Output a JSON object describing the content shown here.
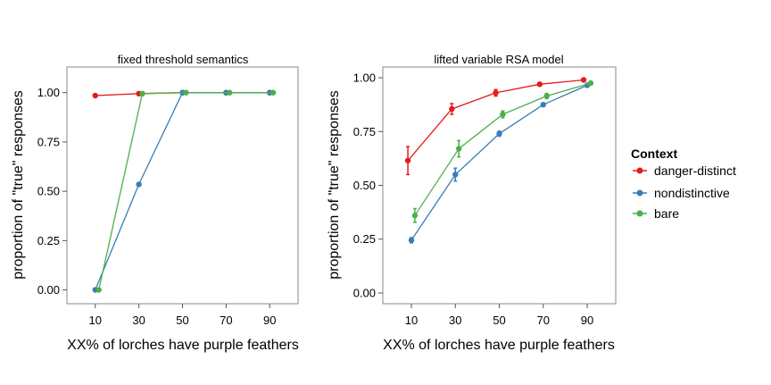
{
  "colors": {
    "danger-distinct": "#e41a1c",
    "nondistinctive": "#377eb8",
    "bare": "#4daf4a"
  },
  "legend": {
    "title": "Context",
    "items": [
      {
        "key": "danger-distinct",
        "label": "danger-distinct"
      },
      {
        "key": "nondistinctive",
        "label": "nondistinctive"
      },
      {
        "key": "bare",
        "label": "bare"
      }
    ]
  },
  "chart_data": [
    {
      "type": "line",
      "title": "fixed threshold semantics",
      "xlabel": "XX% of lorches have purple feathers",
      "ylabel": "proportion of \"true\" responses",
      "x_ticks": [
        10,
        30,
        50,
        70,
        90
      ],
      "y_ticks": [
        0.0,
        0.25,
        0.5,
        0.75,
        1.0
      ],
      "y_tick_labels": [
        "0.00",
        "0.25",
        "0.50",
        "0.75",
        "1.00"
      ],
      "xlim": [
        -3,
        103
      ],
      "ylim": [
        -0.07,
        1.13
      ],
      "series": [
        {
          "key": "danger-distinct",
          "name": "danger-distinct",
          "x": [
            10,
            30,
            50,
            70,
            90
          ],
          "y": [
            0.985,
            0.995,
            1.0,
            1.0,
            1.0
          ]
        },
        {
          "key": "nondistinctive",
          "name": "nondistinctive",
          "x": [
            10,
            30,
            50,
            70,
            90
          ],
          "y": [
            0.0,
            0.535,
            1.0,
            1.0,
            1.0
          ]
        },
        {
          "key": "bare",
          "name": "bare",
          "x": [
            10,
            30,
            50,
            70,
            90
          ],
          "y": [
            0.0,
            0.995,
            1.0,
            1.0,
            1.0
          ]
        }
      ]
    },
    {
      "type": "line",
      "title": "lifted variable RSA model",
      "xlabel": "XX% of lorches have purple feathers",
      "ylabel": "proportion of \"true\" responses",
      "x_ticks": [
        10,
        30,
        50,
        70,
        90
      ],
      "y_ticks": [
        0.0,
        0.25,
        0.5,
        0.75,
        1.0
      ],
      "y_tick_labels": [
        "0.00",
        "0.25",
        "0.50",
        "0.75",
        "1.00"
      ],
      "xlim": [
        -3,
        103
      ],
      "ylim": [
        -0.05,
        1.05
      ],
      "series": [
        {
          "key": "danger-distinct",
          "name": "danger-distinct",
          "x": [
            10,
            30,
            50,
            70,
            90
          ],
          "y": [
            0.615,
            0.855,
            0.93,
            0.97,
            0.99
          ],
          "err": [
            0.065,
            0.025,
            0.015,
            0.008,
            0.005
          ]
        },
        {
          "key": "nondistinctive",
          "name": "nondistinctive",
          "x": [
            10,
            30,
            50,
            70,
            90
          ],
          "y": [
            0.245,
            0.55,
            0.74,
            0.875,
            0.965
          ],
          "err": [
            0.012,
            0.03,
            0.012,
            0.008,
            0.005
          ]
        },
        {
          "key": "bare",
          "name": "bare",
          "x": [
            10,
            30,
            50,
            70,
            90
          ],
          "y": [
            0.36,
            0.67,
            0.83,
            0.915,
            0.975
          ],
          "err": [
            0.032,
            0.038,
            0.016,
            0.012,
            0.005
          ]
        }
      ]
    }
  ]
}
